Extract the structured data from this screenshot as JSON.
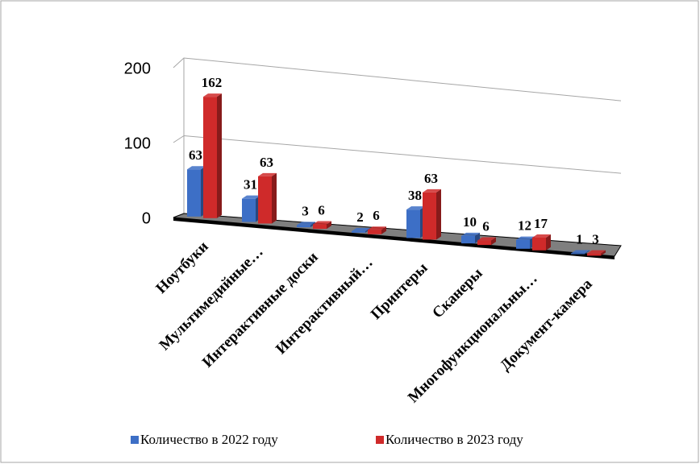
{
  "chart_data": {
    "type": "bar3d",
    "categories": [
      "Ноутбуки",
      "Мультимедийные…",
      "Интерактивные доски",
      "Интерактивный…",
      "Принтеры",
      "Сканеры",
      "Многофункциональны…",
      "Документ-камера"
    ],
    "series": [
      {
        "name": "Количество в 2022 году",
        "color": "#3d6fc6",
        "values": [
          63,
          31,
          3,
          2,
          38,
          10,
          12,
          1
        ]
      },
      {
        "name": "Количество в 2023 году",
        "color": "#cf2a2a",
        "values": [
          162,
          63,
          6,
          6,
          63,
          6,
          17,
          3
        ]
      }
    ],
    "ylim": [
      0,
      200
    ],
    "yticks": [
      0,
      100,
      200
    ],
    "grid": true,
    "legend": "bottom"
  }
}
